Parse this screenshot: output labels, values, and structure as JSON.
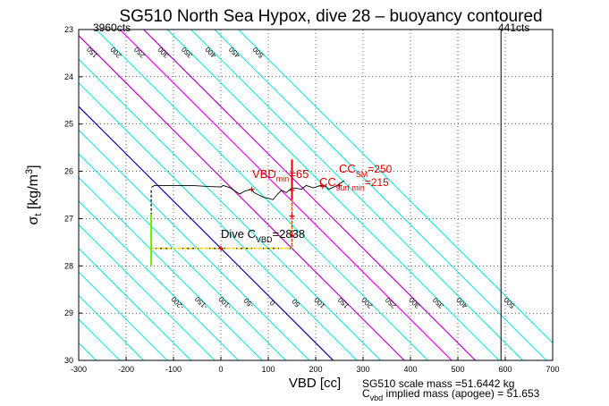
{
  "chart_data": {
    "type": "line",
    "title": "SG510 North Sea Hypox, dive 28 – buoyancy contoured",
    "xlabel": "VBD [cc]",
    "ylabel_main": "σ",
    "ylabel_sub": "t",
    "ylabel_units": " [kg/m",
    "ylabel_exp": "3",
    "ylabel_close": "]",
    "xlim": [
      -300,
      700
    ],
    "ylim": [
      23,
      30
    ],
    "y_reversed": true,
    "xticks": [
      -300,
      -200,
      -100,
      0,
      100,
      200,
      300,
      400,
      500,
      600,
      700
    ],
    "yticks": [
      23,
      24,
      25,
      26,
      27,
      28,
      29,
      30
    ],
    "contours": {
      "slope_cc_per_sigma": 100,
      "cyan_levels": [
        -500,
        -450,
        -400,
        -350,
        -300,
        -250,
        -200,
        -150,
        -100,
        -50,
        50,
        100,
        150,
        200,
        250,
        300,
        350,
        400,
        450,
        500
      ],
      "top_labels": [
        "-450",
        "-400",
        "-200",
        "-150",
        "-100",
        "-50",
        "0",
        "50",
        "100",
        "150",
        "200",
        "250",
        "300",
        "350",
        "400",
        "450",
        "500"
      ],
      "top_label_levels": [
        -450,
        -400,
        -200,
        -150,
        -100,
        -50,
        0,
        50,
        100,
        150,
        200,
        250,
        300,
        350,
        400,
        450,
        500
      ],
      "left_labels": [
        "-400",
        "-350",
        "-300",
        "-250"
      ],
      "left_label_levels": [
        -400,
        -350,
        -300,
        -250
      ],
      "bottom_labels": [
        "-200",
        "-150",
        "-100",
        "-50",
        "0",
        "50",
        "100",
        "150",
        "200",
        "250",
        "300",
        "350",
        "400",
        "500"
      ],
      "bottom_label_levels": [
        -200,
        -150,
        -100,
        -50,
        0,
        50,
        100,
        150,
        200,
        250,
        300,
        350,
        400,
        500
      ],
      "zero_color": "#0000aa",
      "contour_color": "#00e5e5",
      "magenta_levels": [
        150,
        300
      ],
      "magenta_color": "#cc00cc",
      "other_levels": [
        250
      ],
      "other_color": "#ff00ff"
    },
    "vertical_line_x": 591,
    "top_left_text": "3960cts",
    "top_right_text": "441cts",
    "profile": {
      "x": [
        -147,
        -140,
        -120,
        -90,
        -60,
        -30,
        0,
        5,
        20,
        35,
        40,
        50,
        65,
        70,
        80,
        90,
        100,
        110,
        118,
        128,
        138,
        150,
        160,
        170,
        180,
        195,
        210,
        220,
        228,
        245,
        260
      ],
      "y": [
        26.34,
        26.3,
        26.3,
        26.3,
        26.3,
        26.32,
        26.33,
        26.3,
        26.35,
        26.45,
        26.48,
        26.42,
        26.38,
        26.45,
        26.5,
        26.55,
        26.57,
        26.6,
        26.5,
        26.4,
        26.45,
        26.35,
        26.36,
        26.38,
        26.3,
        26.35,
        26.3,
        26.3,
        26.38,
        26.3,
        26.2
      ],
      "color": "#000000"
    },
    "dashed_box": {
      "x": [
        -147,
        -147,
        150,
        150
      ],
      "y": [
        26.4,
        27.63,
        27.63,
        26.5
      ],
      "color": "#000000"
    },
    "yellow_segment": {
      "x": [
        -147,
        150
      ],
      "y": [
        27.63,
        27.63
      ],
      "color": "#ffd700"
    },
    "green_segment": {
      "x": [
        -147,
        -147
      ],
      "y": [
        26.9,
        27.99
      ],
      "color": "#66ee00"
    },
    "orange_segment": {
      "x": [
        150,
        150
      ],
      "y": [
        26.5,
        27.63
      ],
      "color": "#ff6600"
    },
    "red_vertical": {
      "x": [
        150,
        150
      ],
      "y": [
        25.75,
        26.6
      ],
      "color": "#dd0000"
    },
    "markers": [
      {
        "x": 65,
        "y": 26.38,
        "color": "#dd0000"
      },
      {
        "x": 150,
        "y": 26.4,
        "color": "#dd0000"
      },
      {
        "x": 150,
        "y": 26.95,
        "color": "#dd0000"
      },
      {
        "x": 150,
        "y": 27.35,
        "color": "#dd0000"
      },
      {
        "x": 250,
        "y": 26.3,
        "color": "#dd0000"
      },
      {
        "x": 215,
        "y": 26.32,
        "color": "#dd0000"
      },
      {
        "x": 0,
        "y": 27.63,
        "color": "#dd0000"
      }
    ],
    "annotations": {
      "vbd_main": "VBD",
      "vbd_sub": "min",
      "vbd_val": "=65",
      "cc_main": "CC",
      "cc_sub": "SM",
      "cc_val": "=250",
      "ccs_main": "CC",
      "ccs_sub": "surf min",
      "ccs_val": "=215",
      "dive_main": "Dive C",
      "dive_sub": "VBD",
      "dive_val": "=2838"
    },
    "footer_line1": "SG510 scale mass =51.6442 kg",
    "footer_line2_main": "C",
    "footer_line2_sub": "vbd",
    "footer_line2_rest": " implied mass (apogee) = 51.653"
  }
}
